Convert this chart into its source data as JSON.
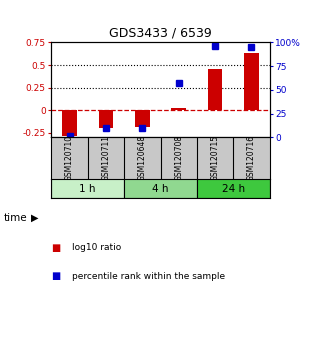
{
  "title": "GDS3433 / 6539",
  "samples": [
    "GSM120710",
    "GSM120711",
    "GSM120648",
    "GSM120708",
    "GSM120715",
    "GSM120716"
  ],
  "log10_ratio": [
    -0.28,
    -0.2,
    -0.18,
    0.03,
    0.46,
    0.63
  ],
  "percentile_rank": [
    0.02,
    0.1,
    0.1,
    0.57,
    0.96,
    0.95
  ],
  "time_groups": [
    {
      "label": "1 h",
      "samples": [
        0,
        1
      ],
      "color": "#c8f0c8"
    },
    {
      "label": "4 h",
      "samples": [
        2,
        3
      ],
      "color": "#90d890"
    },
    {
      "label": "24 h",
      "samples": [
        4,
        5
      ],
      "color": "#3ec83e"
    }
  ],
  "bar_color": "#cc0000",
  "dot_color": "#0000cc",
  "left_ylim": [
    -0.3,
    0.75
  ],
  "right_ylim": [
    0,
    1.0
  ],
  "left_yticks": [
    -0.25,
    0,
    0.25,
    0.5,
    0.75
  ],
  "right_yticks": [
    0,
    0.25,
    0.5,
    0.75,
    1.0
  ],
  "right_yticklabels": [
    "0",
    "25",
    "50",
    "75",
    "100%"
  ],
  "left_yticklabels": [
    "-0.25",
    "0",
    "0.25",
    "0.5",
    "0.75"
  ],
  "hlines": [
    0.25,
    0.5
  ],
  "zero_line_color": "#cc0000",
  "background_color": "white",
  "plot_bg": "white",
  "legend_labels": [
    "log10 ratio",
    "percentile rank within the sample"
  ],
  "xlabel_time": "time"
}
